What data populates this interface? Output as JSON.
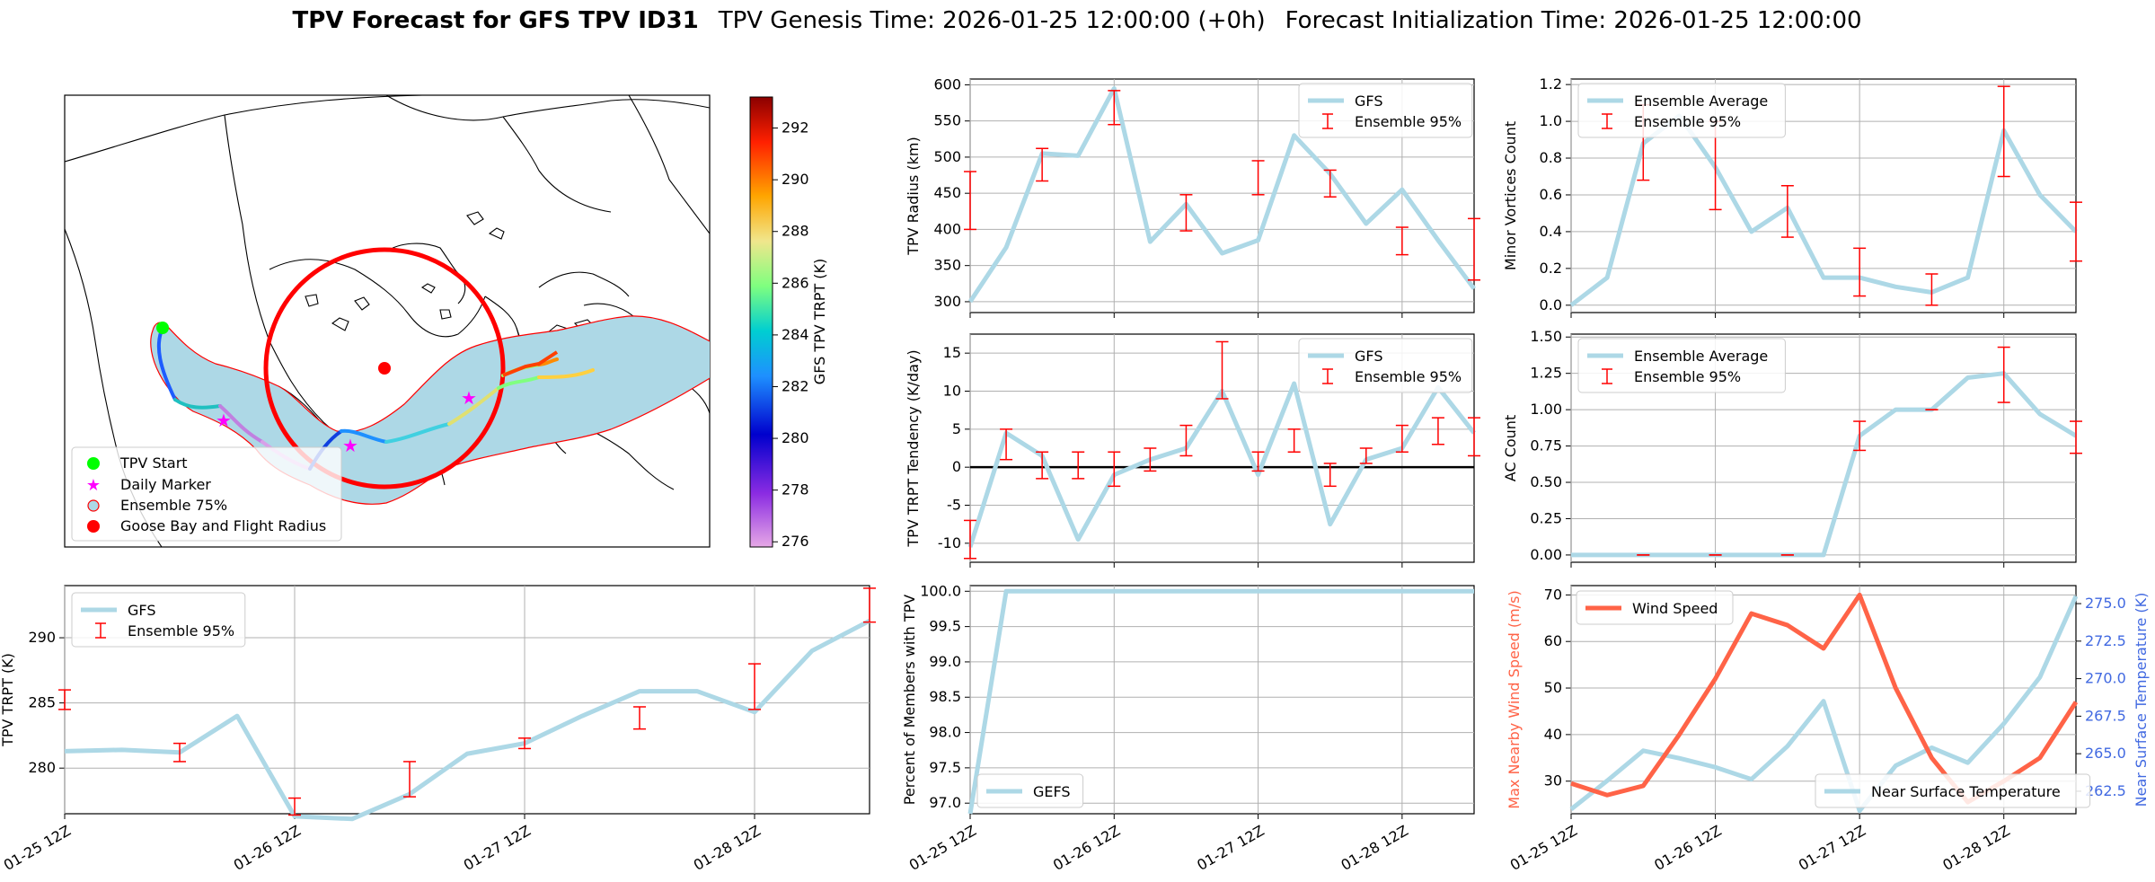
{
  "title": {
    "bold": "TPV Forecast for GFS TPV ID31",
    "genesis": "TPV Genesis Time: 2026-01-25 12:00:00 (+0h)",
    "init": "Forecast Initialization Time: 2026-01-25 12:00:00"
  },
  "colors": {
    "line": "#add8e6",
    "error": "#ff0000",
    "wind": "#ff6347",
    "temp_axis": "#4169e1",
    "map_fill": "#add8e6",
    "grid": "#b0b0b0"
  },
  "map": {
    "colorbar_label": "GFS TPV TRPT (K)",
    "colorbar_ticks": [
      "276",
      "278",
      "280",
      "282",
      "284",
      "286",
      "288",
      "290",
      "292"
    ],
    "legend": [
      "TPV Start",
      "Daily Marker",
      "Ensemble 75%",
      "Goose Bay and Flight Radius"
    ]
  },
  "x_tick_labels": [
    "01-25 12Z",
    "01-26 12Z",
    "01-27 12Z",
    "01-28 12Z"
  ],
  "chart_data": [
    {
      "id": "radius",
      "type": "line",
      "ylabel": "TPV Radius (km)",
      "legend": [
        "GFS",
        "Ensemble 95%"
      ],
      "ylim": [
        285,
        608
      ],
      "yticks": [
        300,
        350,
        400,
        450,
        500,
        550,
        600
      ],
      "x": [
        0,
        6,
        12,
        18,
        24,
        30,
        36,
        42,
        48,
        54,
        60,
        66,
        72,
        78,
        84
      ],
      "values": [
        300,
        375,
        505,
        502,
        595,
        383,
        435,
        367,
        385,
        530,
        477,
        408,
        455,
        385,
        318
      ],
      "errorbars": [
        [
          0,
          400,
          480
        ],
        [
          12,
          467,
          512
        ],
        [
          24,
          545,
          592
        ],
        [
          36,
          398,
          448
        ],
        [
          48,
          448,
          495
        ],
        [
          60,
          445,
          482
        ],
        [
          72,
          365,
          403
        ],
        [
          84,
          330,
          415
        ]
      ]
    },
    {
      "id": "minor",
      "type": "line",
      "ylabel": "Minor Vortices Count",
      "legend": [
        "Ensemble Average",
        "Ensemble 95%"
      ],
      "ylim": [
        -0.04,
        1.23
      ],
      "yticks": [
        0.0,
        0.2,
        0.4,
        0.6,
        0.8,
        1.0,
        1.2
      ],
      "x": [
        0,
        6,
        12,
        18,
        24,
        30,
        36,
        42,
        48,
        54,
        60,
        66,
        72,
        78,
        84
      ],
      "values": [
        0.0,
        0.15,
        0.88,
        1.03,
        0.75,
        0.4,
        0.53,
        0.15,
        0.15,
        0.1,
        0.07,
        0.15,
        0.95,
        0.6,
        0.4
      ],
      "errorbars": [
        [
          12,
          0.68,
          1.09
        ],
        [
          24,
          0.52,
          1.0
        ],
        [
          36,
          0.37,
          0.65
        ],
        [
          48,
          0.05,
          0.31
        ],
        [
          60,
          0.0,
          0.17
        ],
        [
          72,
          0.7,
          1.19
        ],
        [
          84,
          0.24,
          0.56
        ]
      ]
    },
    {
      "id": "tendency",
      "type": "line",
      "ylabel": "TPV TRPT Tendency (K/day)",
      "legend": [
        "GFS",
        "Ensemble 95%"
      ],
      "ylim": [
        -12.5,
        17.5
      ],
      "yticks": [
        -10,
        -5,
        0,
        5,
        10,
        15
      ],
      "x": [
        0,
        6,
        12,
        18,
        24,
        30,
        36,
        42,
        48,
        54,
        60,
        66,
        72,
        78,
        84
      ],
      "values": [
        -10.5,
        4.5,
        1.5,
        -9.5,
        -1.0,
        1.0,
        2.5,
        10.0,
        -1.0,
        11.0,
        -7.5,
        1.0,
        2.5,
        10.5,
        4.5
      ],
      "zero_line": true,
      "errorbars": [
        [
          0,
          -12.0,
          -7.0
        ],
        [
          6,
          1.0,
          5.0
        ],
        [
          12,
          -1.5,
          2.0
        ],
        [
          18,
          -1.5,
          2.0
        ],
        [
          24,
          -2.5,
          2.0
        ],
        [
          30,
          -0.5,
          2.5
        ],
        [
          36,
          1.5,
          5.5
        ],
        [
          42,
          9.0,
          16.5
        ],
        [
          48,
          -0.5,
          2.0
        ],
        [
          54,
          2.0,
          5.0
        ],
        [
          60,
          -2.5,
          0.5
        ],
        [
          66,
          0.5,
          2.5
        ],
        [
          72,
          2.0,
          5.5
        ],
        [
          78,
          3.0,
          6.5
        ],
        [
          84,
          1.5,
          6.5
        ]
      ]
    },
    {
      "id": "ac",
      "type": "line",
      "ylabel": "AC Count",
      "legend": [
        "Ensemble Average",
        "Ensemble 95%"
      ],
      "ylim": [
        -0.05,
        1.52
      ],
      "yticks": [
        0.0,
        0.25,
        0.5,
        0.75,
        1.0,
        1.25,
        1.5
      ],
      "x": [
        0,
        6,
        12,
        18,
        24,
        30,
        36,
        42,
        48,
        54,
        60,
        66,
        72,
        78,
        84
      ],
      "values": [
        0,
        0,
        0,
        0,
        0,
        0,
        0,
        0,
        0.82,
        1.0,
        1.0,
        1.22,
        1.25,
        0.97,
        0.82
      ],
      "errorbars": [
        [
          12,
          0,
          0
        ],
        [
          24,
          0,
          0
        ],
        [
          36,
          0,
          0
        ],
        [
          48,
          0.72,
          0.92
        ],
        [
          60,
          1.0,
          1.0
        ],
        [
          72,
          1.05,
          1.43
        ],
        [
          84,
          0.7,
          0.92
        ]
      ]
    },
    {
      "id": "trpt",
      "type": "line",
      "ylabel": "TPV TRPT (K)",
      "legend": [
        "GFS",
        "Ensemble 95%"
      ],
      "ylim": [
        276.5,
        294.0
      ],
      "yticks": [
        280,
        285,
        290
      ],
      "x": [
        0,
        6,
        12,
        18,
        24,
        30,
        36,
        42,
        48,
        54,
        60,
        66,
        72,
        78,
        84
      ],
      "values": [
        281.3,
        281.4,
        281.2,
        284.0,
        276.3,
        276.1,
        278.0,
        281.1,
        281.9,
        284.0,
        285.9,
        285.9,
        284.3,
        289.0,
        291.3
      ],
      "errorbars": [
        [
          0,
          284.5,
          286.0
        ],
        [
          12,
          280.5,
          281.9
        ],
        [
          24,
          276.4,
          277.7
        ],
        [
          36,
          277.8,
          280.5
        ],
        [
          48,
          281.5,
          282.3
        ],
        [
          60,
          283.0,
          284.7
        ],
        [
          72,
          284.5,
          288.0
        ],
        [
          84,
          291.2,
          293.8
        ]
      ]
    },
    {
      "id": "percent",
      "type": "line",
      "ylabel": "Percent of Members with TPV",
      "legend": [
        "GEFS"
      ],
      "ylim": [
        96.85,
        100.08
      ],
      "yticks": [
        97.0,
        97.5,
        98.0,
        98.5,
        99.0,
        99.5,
        100.0
      ],
      "x": [
        0,
        6,
        12,
        18,
        24,
        30,
        36,
        42,
        48,
        54,
        60,
        66,
        72,
        78,
        84
      ],
      "values": [
        96.85,
        100.0,
        100.0,
        100.0,
        100.0,
        100.0,
        100.0,
        100.0,
        100.0,
        100.0,
        100.0,
        100.0,
        100.0,
        100.0,
        100.0
      ]
    },
    {
      "id": "wind",
      "type": "line",
      "ylabel": "Max Nearby Wind Speed (m/s)",
      "ylabel_right": "Near Surface Temperature (K)",
      "legend": [
        "Wind Speed"
      ],
      "legend_right": [
        "Near Surface Temperature"
      ],
      "ylim": [
        23,
        72
      ],
      "yticks": [
        30,
        40,
        50,
        60,
        70
      ],
      "ylim_right": [
        261.0,
        276.2
      ],
      "yticks_right": [
        262.5,
        265.0,
        267.5,
        270.0,
        272.5,
        275.0
      ],
      "x": [
        0,
        6,
        12,
        18,
        24,
        30,
        36,
        42,
        48,
        54,
        60,
        66,
        72,
        78,
        84
      ],
      "values": [
        29.5,
        27,
        29,
        40,
        52,
        66,
        63.5,
        58.5,
        70,
        50,
        35,
        25.5,
        30,
        35,
        47
      ],
      "series_right": [
        261.3,
        263.2,
        265.2,
        264.7,
        264.1,
        263.3,
        265.5,
        268.5,
        261.2,
        264.2,
        265.4,
        264.4,
        267.0,
        270.1,
        275.5
      ]
    }
  ]
}
